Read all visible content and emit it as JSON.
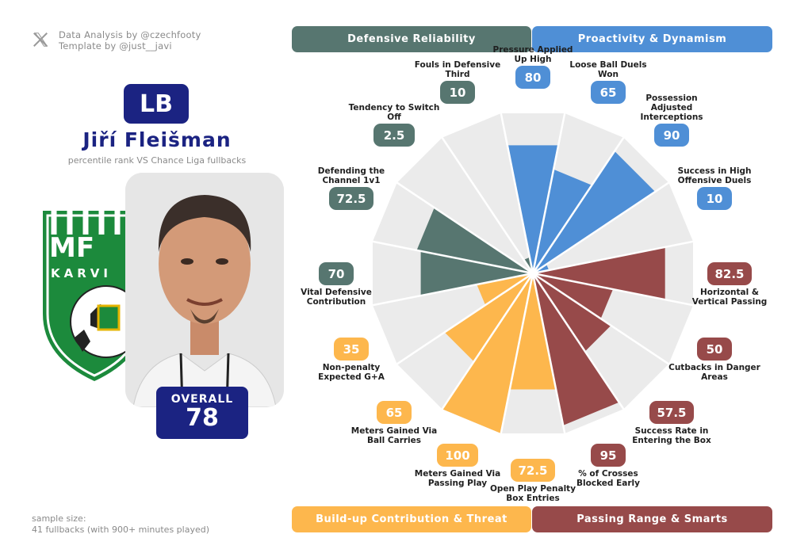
{
  "credits": {
    "line1": "Data Analysis by @czechfooty",
    "line2": "Template by @just__javi",
    "icon": "x-logo-icon"
  },
  "player": {
    "position": "LB",
    "name": "Jiří Fleišman",
    "subtitle": "percentile rank VS Chance Liga fullbacks",
    "overall_label": "OVERALL",
    "overall_value": "78"
  },
  "club_crest": {
    "text_top": "MF",
    "text_bottom": "KARVI",
    "colors": [
      "#1c8a3c",
      "#ffffff"
    ]
  },
  "sample": {
    "line1": "sample size:",
    "line2": "41 fullbacks (with 900+ minutes played)"
  },
  "colors": {
    "navy": "#1b2382",
    "defensive": "#577670",
    "proactivity": "#4f8fd6",
    "passing": "#974a4a",
    "buildup": "#fdb74d",
    "background_wedge": "#ebebeb"
  },
  "chart_data": {
    "type": "radar",
    "scale": [
      0,
      100
    ],
    "categories": [
      {
        "name": "Defensive Reliability",
        "color": "#577670"
      },
      {
        "name": "Proactivity & Dynamism",
        "color": "#4f8fd6"
      },
      {
        "name": "Build-up Contribution & Threat",
        "color": "#fdb74d"
      },
      {
        "name": "Passing Range & Smarts",
        "color": "#974a4a"
      }
    ],
    "metrics": [
      {
        "label": "Pressure Applied Up High",
        "value": 80,
        "category": "Proactivity & Dynamism"
      },
      {
        "label": "Loose Ball Duels Won",
        "value": 65,
        "category": "Proactivity & Dynamism"
      },
      {
        "label": "Possession Adjusted Interceptions",
        "value": 90,
        "category": "Proactivity & Dynamism"
      },
      {
        "label": "Success in High Offensive Duels",
        "value": 10,
        "category": "Proactivity & Dynamism"
      },
      {
        "label": "Horizontal & Vertical Passing",
        "value": 82.5,
        "category": "Passing Range & Smarts"
      },
      {
        "label": "Cutbacks in Danger Areas",
        "value": 50,
        "category": "Passing Range & Smarts"
      },
      {
        "label": "Success Rate in Entering the Box",
        "value": 57.5,
        "category": "Passing Range & Smarts"
      },
      {
        "label": "% of Crosses Blocked Early",
        "value": 95,
        "category": "Passing Range & Smarts"
      },
      {
        "label": "Open Play Penalty Box Entries",
        "value": 72.5,
        "category": "Build-up Contribution & Threat"
      },
      {
        "label": "Meters Gained Via Passing Play",
        "value": 100,
        "category": "Build-up Contribution & Threat"
      },
      {
        "label": "Meters Gained Via Ball Carries",
        "value": 65,
        "category": "Build-up Contribution & Threat"
      },
      {
        "label": "Non-penalty Expected G+A",
        "value": 35,
        "category": "Build-up Contribution & Threat"
      },
      {
        "label": "Vital Defensive Contribution",
        "value": 70,
        "category": "Defensive Reliability"
      },
      {
        "label": "Defending the Channel 1v1",
        "value": 72.5,
        "category": "Defensive Reliability"
      },
      {
        "label": "Tendency to Switch Off",
        "value": 2.5,
        "category": "Defensive Reliability"
      },
      {
        "label": "Fouls in Defensive Third",
        "value": 10,
        "category": "Defensive Reliability"
      }
    ]
  }
}
